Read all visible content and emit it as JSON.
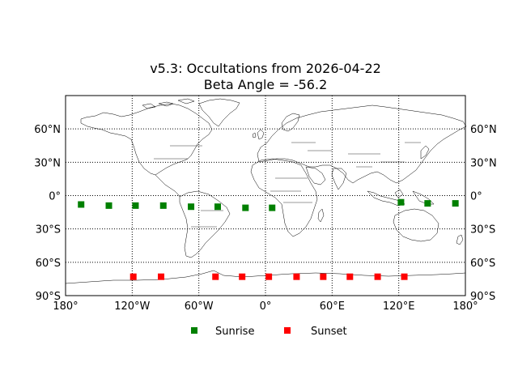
{
  "chart_data": {
    "type": "scatter",
    "title_line1": "v5.3: Occultations from 2026-04-22",
    "title_line2": "Beta Angle = -56.2",
    "projection": "equirectangular",
    "xlim": [
      -180,
      180
    ],
    "ylim": [
      -90,
      90
    ],
    "grid": true,
    "grid_style": "dotted",
    "xticks": [
      {
        "value": -180,
        "label": "180°"
      },
      {
        "value": -120,
        "label": "120°W"
      },
      {
        "value": -60,
        "label": "60°W"
      },
      {
        "value": 0,
        "label": "0°"
      },
      {
        "value": 60,
        "label": "60°E"
      },
      {
        "value": 120,
        "label": "120°E"
      },
      {
        "value": 180,
        "label": "180°"
      }
    ],
    "yticks": [
      {
        "value": 60,
        "label": "60°N"
      },
      {
        "value": 30,
        "label": "30°N"
      },
      {
        "value": 0,
        "label": "0°"
      },
      {
        "value": -30,
        "label": "30°S"
      },
      {
        "value": -60,
        "label": "60°S"
      },
      {
        "value": -90,
        "label": "90°S"
      }
    ],
    "legend_placement": "bottom-center",
    "series": [
      {
        "name": "Sunrise",
        "color": "#008000",
        "marker": "square",
        "points": [
          {
            "lon": -166,
            "lat": -8
          },
          {
            "lon": -141,
            "lat": -9
          },
          {
            "lon": -117,
            "lat": -9
          },
          {
            "lon": -92,
            "lat": -9
          },
          {
            "lon": -67,
            "lat": -10
          },
          {
            "lon": -43,
            "lat": -10
          },
          {
            "lon": -18,
            "lat": -11
          },
          {
            "lon": 6,
            "lat": -11
          },
          {
            "lon": 122,
            "lat": -6
          },
          {
            "lon": 146,
            "lat": -7
          },
          {
            "lon": 171,
            "lat": -7
          }
        ]
      },
      {
        "name": "Sunset",
        "color": "#ff0000",
        "marker": "square",
        "points": [
          {
            "lon": -119,
            "lat": -73
          },
          {
            "lon": -94,
            "lat": -73
          },
          {
            "lon": -45,
            "lat": -73
          },
          {
            "lon": -21,
            "lat": -73
          },
          {
            "lon": 3,
            "lat": -73
          },
          {
            "lon": 28,
            "lat": -73
          },
          {
            "lon": 52,
            "lat": -73
          },
          {
            "lon": 76,
            "lat": -73
          },
          {
            "lon": 101,
            "lat": -73
          },
          {
            "lon": 125,
            "lat": -73
          }
        ]
      }
    ]
  }
}
